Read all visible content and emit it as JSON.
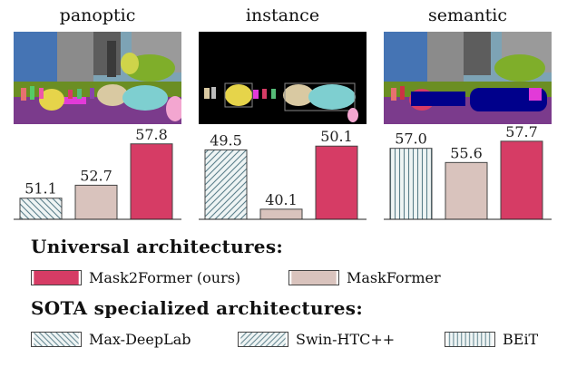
{
  "colors": {
    "mask2former": "#d63c65",
    "maskformer": "#d9c3bd",
    "pattern_stroke": "#5b7f8a",
    "pattern_fill": "#eef4f4"
  },
  "chart_data": [
    {
      "type": "bar",
      "title": "panoptic",
      "categories": [
        "Max-DeepLab",
        "MaskFormer",
        "Mask2Former (ours)"
      ],
      "values": [
        51.1,
        52.7,
        57.8
      ],
      "styles": [
        "diag-back",
        "maskformer",
        "mask2former"
      ],
      "ylim": [
        48.5,
        59
      ]
    },
    {
      "type": "bar",
      "title": "instance",
      "categories": [
        "Swin-HTC++",
        "MaskFormer",
        "Mask2Former (ours)"
      ],
      "values": [
        49.5,
        40.1,
        50.1
      ],
      "styles": [
        "diag-fwd",
        "maskformer",
        "mask2former"
      ],
      "ylim": [
        38.5,
        52
      ]
    },
    {
      "type": "bar",
      "title": "semantic",
      "categories": [
        "BEiT",
        "MaskFormer",
        "Mask2Former (ours)"
      ],
      "values": [
        57.0,
        55.6,
        57.7
      ],
      "styles": [
        "vertical",
        "maskformer",
        "mask2former"
      ],
      "ylim": [
        50,
        58.4
      ]
    }
  ],
  "legend": {
    "universal_title": "Universal architectures:",
    "sota_title": "SOTA specialized architectures:",
    "items": [
      {
        "label": "Mask2Former (ours)",
        "style": "mask2former"
      },
      {
        "label": "MaskFormer",
        "style": "maskformer"
      },
      {
        "label": "Max-DeepLab",
        "style": "diag-back"
      },
      {
        "label": "Swin-HTC++",
        "style": "diag-fwd"
      },
      {
        "label": "BEiT",
        "style": "vertical"
      }
    ]
  }
}
